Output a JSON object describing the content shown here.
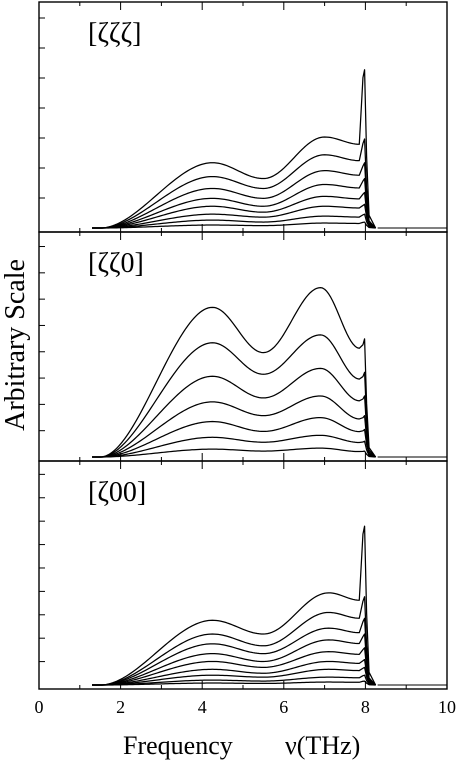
{
  "figure": {
    "ylabel": "Arbitrary Scale",
    "xlabel_prefix": "Frequency",
    "xlabel_suffix": "ν(THz)"
  },
  "chart_data": {
    "type": "line",
    "shared_x": {
      "xlim": [
        0,
        10
      ],
      "major_ticks": [
        0,
        2,
        4,
        6,
        8,
        10
      ],
      "tick_labels": [
        "0",
        "2",
        "4",
        "6",
        "8",
        "10"
      ]
    },
    "panels": [
      {
        "label": "[ζζζ]",
        "ylim": [
          0,
          1.0
        ],
        "n_minor_y_ticks": 7,
        "series": [
          {
            "x": [
              1.5,
              4.25,
              5.5,
              7.0,
              8.0
            ],
            "y": [
              0,
              0.33,
              0.25,
              0.46,
              0.8
            ]
          },
          {
            "x": [
              1.5,
              4.25,
              5.5,
              7.0,
              8.0
            ],
            "y": [
              0,
              0.26,
              0.2,
              0.37,
              0.45
            ]
          },
          {
            "x": [
              1.5,
              4.25,
              5.5,
              7.0,
              8.0
            ],
            "y": [
              0,
              0.2,
              0.15,
              0.29,
              0.33
            ]
          },
          {
            "x": [
              1.5,
              4.25,
              5.5,
              7.0,
              8.0
            ],
            "y": [
              0,
              0.15,
              0.11,
              0.22,
              0.25
            ]
          },
          {
            "x": [
              1.5,
              4.25,
              5.5,
              7.0,
              8.0
            ],
            "y": [
              0,
              0.11,
              0.08,
              0.16,
              0.18
            ]
          },
          {
            "x": [
              1.5,
              4.25,
              5.5,
              7.0,
              8.0
            ],
            "y": [
              0,
              0.07,
              0.055,
              0.11,
              0.12
            ]
          },
          {
            "x": [
              1.5,
              4.25,
              5.5,
              7.0,
              8.0
            ],
            "y": [
              0,
              0.04,
              0.03,
              0.06,
              0.07
            ]
          },
          {
            "x": [
              1.5,
              4.25,
              5.5,
              7.0,
              8.0
            ],
            "y": [
              0,
              0.015,
              0.012,
              0.025,
              0.03
            ]
          }
        ]
      },
      {
        "label": "[ζζ0]",
        "ylim": [
          0,
          1.0
        ],
        "n_minor_y_ticks": 8,
        "series": [
          {
            "x": [
              1.5,
              4.25,
              5.5,
              6.9,
              8.0
            ],
            "y": [
              0,
              0.76,
              0.53,
              0.86,
              0.6
            ]
          },
          {
            "x": [
              1.5,
              4.25,
              5.5,
              6.9,
              8.0
            ],
            "y": [
              0,
              0.58,
              0.42,
              0.62,
              0.43
            ]
          },
          {
            "x": [
              1.5,
              4.25,
              5.5,
              6.9,
              8.0
            ],
            "y": [
              0,
              0.41,
              0.3,
              0.45,
              0.31
            ]
          },
          {
            "x": [
              1.5,
              4.25,
              5.5,
              6.9,
              8.0
            ],
            "y": [
              0,
              0.28,
              0.21,
              0.31,
              0.21
            ]
          },
          {
            "x": [
              1.5,
              4.25,
              5.5,
              6.9,
              8.0
            ],
            "y": [
              0,
              0.18,
              0.13,
              0.2,
              0.14
            ]
          },
          {
            "x": [
              1.5,
              4.25,
              5.5,
              6.9,
              8.0
            ],
            "y": [
              0,
              0.1,
              0.075,
              0.11,
              0.08
            ]
          },
          {
            "x": [
              1.5,
              4.25,
              5.5,
              6.9,
              8.0
            ],
            "y": [
              0,
              0.04,
              0.03,
              0.045,
              0.03
            ]
          }
        ]
      },
      {
        "label": "[ζ00]",
        "ylim": [
          0,
          1.0
        ],
        "n_minor_y_ticks": 9,
        "series": [
          {
            "x": [
              1.5,
              4.25,
              5.5,
              7.1,
              8.0
            ],
            "y": [
              0,
              0.33,
              0.26,
              0.47,
              0.81
            ]
          },
          {
            "x": [
              1.5,
              4.25,
              5.5,
              7.1,
              8.0
            ],
            "y": [
              0,
              0.26,
              0.2,
              0.37,
              0.45
            ]
          },
          {
            "x": [
              1.5,
              4.25,
              5.5,
              7.1,
              8.0
            ],
            "y": [
              0,
              0.21,
              0.16,
              0.29,
              0.34
            ]
          },
          {
            "x": [
              1.5,
              4.25,
              5.5,
              7.1,
              8.0
            ],
            "y": [
              0,
              0.16,
              0.12,
              0.23,
              0.26
            ]
          },
          {
            "x": [
              1.5,
              4.25,
              5.5,
              7.1,
              8.0
            ],
            "y": [
              0,
              0.12,
              0.09,
              0.17,
              0.19
            ]
          },
          {
            "x": [
              1.5,
              4.25,
              5.5,
              7.1,
              8.0
            ],
            "y": [
              0,
              0.08,
              0.06,
              0.12,
              0.13
            ]
          },
          {
            "x": [
              1.5,
              4.25,
              5.5,
              7.1,
              8.0
            ],
            "y": [
              0,
              0.05,
              0.04,
              0.08,
              0.09
            ]
          },
          {
            "x": [
              1.5,
              4.25,
              5.5,
              7.1,
              8.0
            ],
            "y": [
              0,
              0.025,
              0.02,
              0.04,
              0.05
            ]
          },
          {
            "x": [
              1.5,
              4.25,
              5.5,
              7.1,
              8.0
            ],
            "y": [
              0,
              0.01,
              0.008,
              0.015,
              0.02
            ]
          }
        ]
      }
    ]
  }
}
